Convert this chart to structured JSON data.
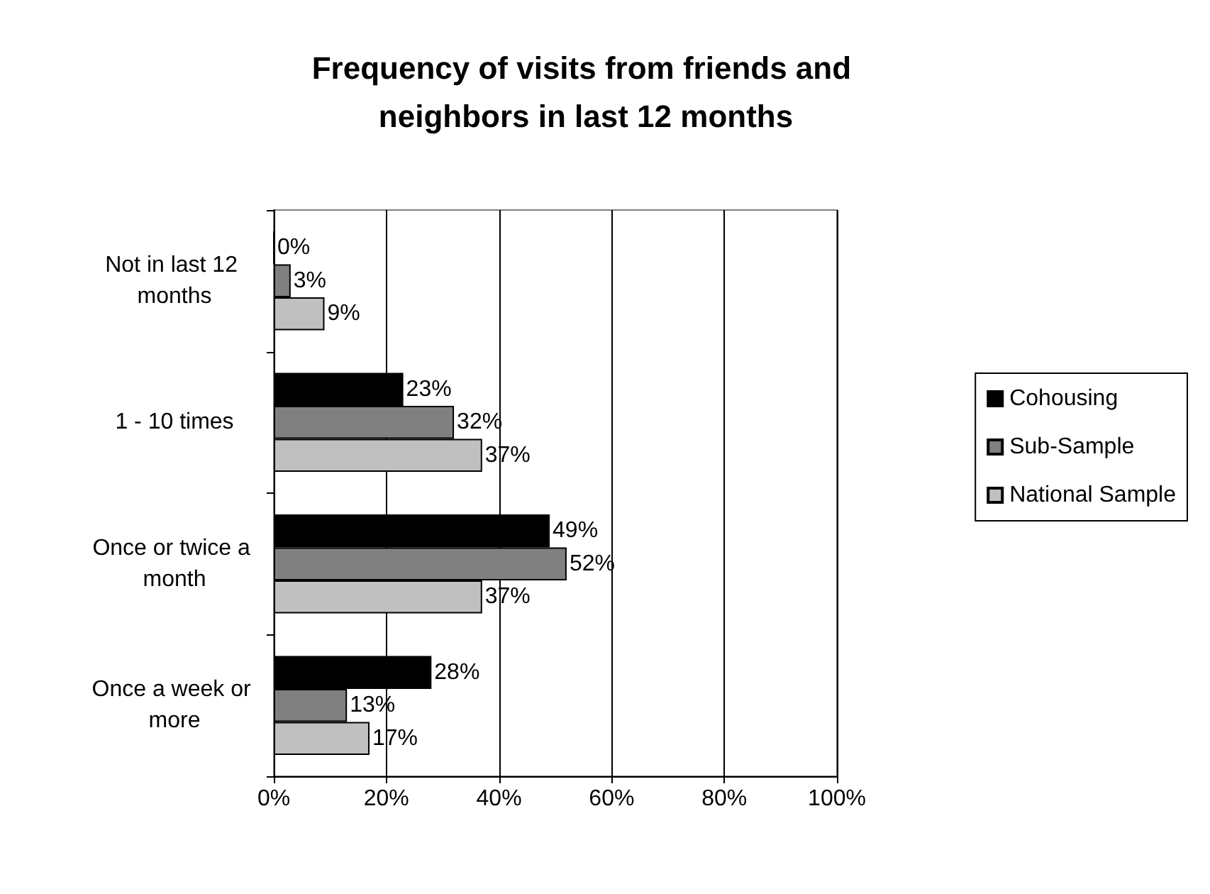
{
  "chart_data": {
    "type": "bar",
    "orientation": "horizontal",
    "title": "Frequency of visits from friends and neighbors in last 12 months",
    "categories": [
      "Not in last 12 months",
      "1 - 10 times",
      "Once or twice a month",
      "Once a week or more"
    ],
    "series": [
      {
        "name": "Cohousing",
        "color": "#000000",
        "values": [
          0,
          23,
          49,
          28
        ],
        "value_labels": [
          "0%",
          "23%",
          "49%",
          "28%"
        ]
      },
      {
        "name": "Sub-Sample",
        "color": "#808080",
        "values": [
          3,
          32,
          52,
          13
        ],
        "value_labels": [
          "3%",
          "32%",
          "52%",
          "13%"
        ]
      },
      {
        "name": "National Sample",
        "color": "#c0c0c0",
        "values": [
          9,
          37,
          37,
          17
        ],
        "value_labels": [
          "9%",
          "37%",
          "37%",
          "17%"
        ]
      }
    ],
    "xlim": [
      0,
      100
    ],
    "xticks": [
      {
        "value": 0,
        "label": "0%"
      },
      {
        "value": 20,
        "label": "20%"
      },
      {
        "value": 40,
        "label": "40%"
      },
      {
        "value": 60,
        "label": "60%"
      },
      {
        "value": 80,
        "label": "80%"
      },
      {
        "value": 100,
        "label": "100%"
      }
    ],
    "grid": "x",
    "legend": "right"
  }
}
